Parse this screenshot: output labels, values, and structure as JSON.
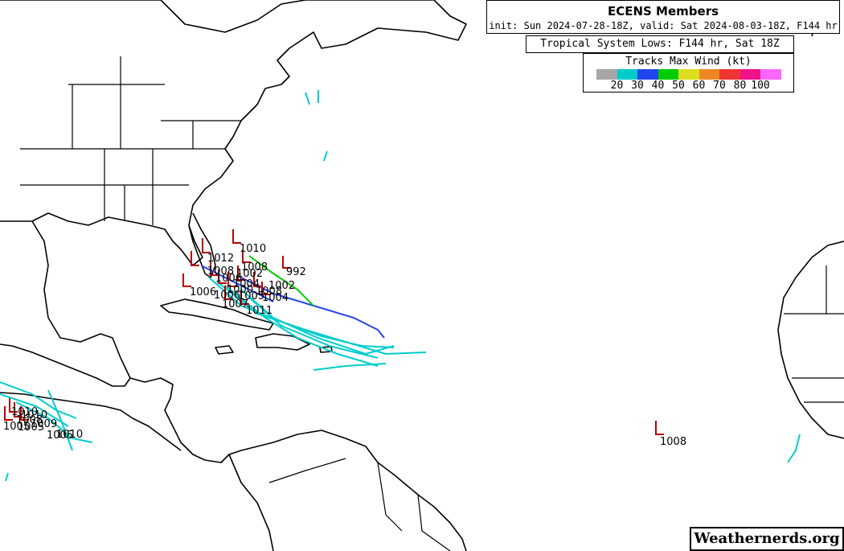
{
  "header": {
    "title": "ECENS Members",
    "subtitle": "init: Sun 2024-07-28-18Z, valid: Sat 2024-08-03-18Z, F144 hr"
  },
  "product": {
    "label": "Tropical System Lows: F144 hr, Sat 18Z"
  },
  "legend": {
    "title": "Tracks Max Wind (kt)",
    "colors": [
      "#a6a6a6",
      "#00cccc",
      "#2244ee",
      "#00cc00",
      "#dddd22",
      "#ee8822",
      "#ee3333",
      "#ee1188",
      "#ff66ff"
    ],
    "tick_labels": [
      "20",
      "30",
      "40",
      "50",
      "60",
      "70",
      "80",
      "100"
    ]
  },
  "pressure_labels": {
    "bahamas": [
      "1010",
      "1012",
      "1008",
      "1008",
      "1002",
      "1006",
      "992",
      "1004",
      "1002",
      "1000",
      "1008",
      "1006",
      "1004",
      "1007",
      "1011",
      "1006",
      "1005"
    ],
    "atlantic": [
      "1008"
    ],
    "pacific": [
      "1010",
      "1010",
      "1008",
      "1009",
      "1005",
      "1005",
      "1005",
      "1010"
    ]
  },
  "credit": {
    "text": "Weathernerds.org"
  },
  "icons": [
    "coastline-map",
    "wind-barb-icon",
    "color-scale-icon"
  ]
}
